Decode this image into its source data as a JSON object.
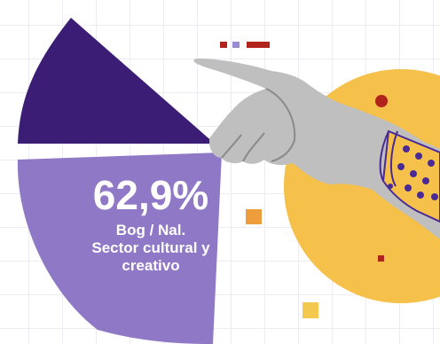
{
  "infographic": {
    "percentage": "62,9%",
    "label_lines": [
      "Bog / Nal.",
      "Sector cultural y",
      "creativo"
    ]
  },
  "colors": {
    "dark_slice": "#3c1d75",
    "light_slice": "#8f78c6",
    "circle": "#f6c14a",
    "hand": "#bfbfbf",
    "accent_red": "#b0241c",
    "accent_orange": "#ee9d3c",
    "accent_yellow": "#f4c84e",
    "accent_violet": "#9b8ad4",
    "dot_purple": "#4a2a95"
  },
  "icons": [
    "pointing-hand-illustration"
  ]
}
